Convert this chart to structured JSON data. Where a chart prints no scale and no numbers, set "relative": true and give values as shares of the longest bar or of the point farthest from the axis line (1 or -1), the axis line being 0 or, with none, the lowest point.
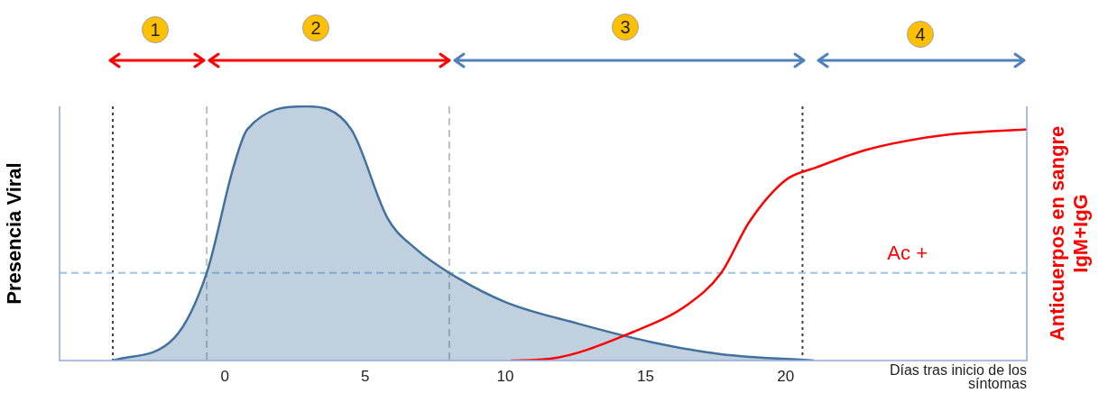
{
  "chart_data": {
    "type": "line",
    "relative": true,
    "xlabel": "Días tras inicio de los síntomas",
    "ylabel": "Presencia Viral",
    "y2label": "Anticuerpos en sangre IgM+IgG",
    "xlim": [
      -5.9,
      28.6
    ],
    "xticks": [
      0,
      5,
      10,
      15,
      20
    ],
    "series": [
      {
        "type": "area",
        "color": "#41719c",
        "x": [
          -4.0,
          -1.8,
          -0.65,
          0.3,
          0.8,
          2.9,
          4.5,
          5.8,
          6.8,
          8.0,
          10,
          12.6,
          15.2,
          17.7,
          21
        ],
        "values": [
          0,
          0.09,
          0.345,
          0.76,
          0.91,
          1.0,
          0.91,
          0.56,
          0.44,
          0.345,
          0.23,
          0.145,
          0.073,
          0.025,
          0
        ]
      },
      {
        "type": "line",
        "color": "#ff0000",
        "x": [
          10.2,
          11.6,
          14.5,
          16.5,
          17.7,
          18.7,
          20,
          21.1,
          22.9,
          25.5,
          28.6
        ],
        "values": [
          0,
          0.007,
          0.11,
          0.22,
          0.345,
          0.545,
          0.71,
          0.76,
          0.83,
          0.885,
          0.91
        ]
      }
    ],
    "ref_lines": [
      {
        "axis": "x",
        "value": -4.0,
        "color": "#404040",
        "line_style": "dotted"
      },
      {
        "axis": "x",
        "value": -0.65,
        "color": "#bfbfbf",
        "line_style": "dashed"
      },
      {
        "axis": "x",
        "value": 8.0,
        "color": "#bfbfbf",
        "line_style": "dashed"
      },
      {
        "axis": "x",
        "value": 20.6,
        "color": "#404040",
        "line_style": "dotted"
      },
      {
        "axis": "y",
        "value": 0.345,
        "label": "Ac +",
        "color": "#9dc3e6",
        "line_style": "dashed"
      }
    ],
    "annotations": [
      "1",
      "2",
      "3",
      "4"
    ],
    "grid": false,
    "legend": false,
    "marker": "none",
    "line_style": "solid"
  }
}
